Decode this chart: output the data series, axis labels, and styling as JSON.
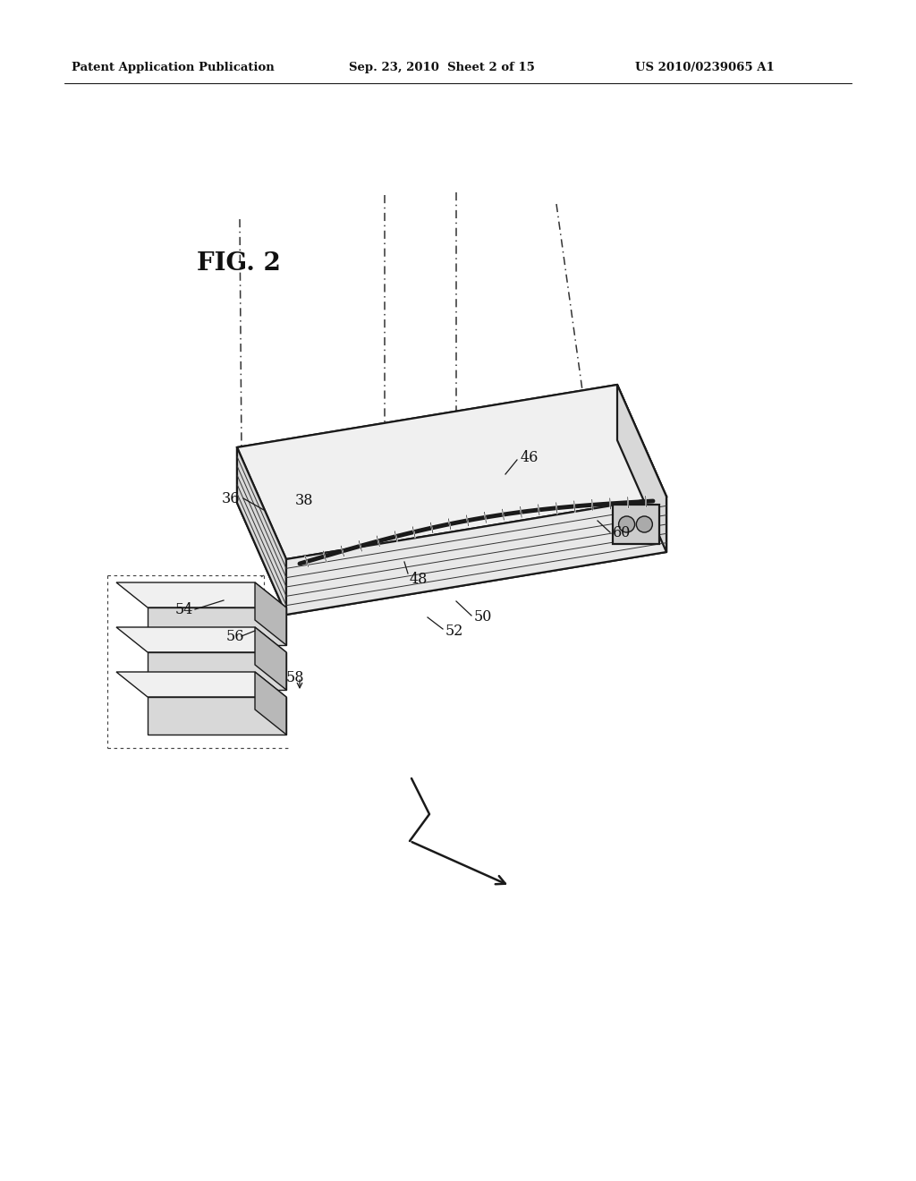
{
  "bg_color": "#ffffff",
  "header_left": "Patent Application Publication",
  "header_mid": "Sep. 23, 2010  Sheet 2 of 15",
  "header_right": "US 2010/0239065 A1",
  "fig_label": "FIG. 2",
  "line_color": "#1a1a1a",
  "gray_light": "#f0f0f0",
  "gray_mid": "#d8d8d8",
  "gray_dark": "#b8b8b8",
  "gray_side": "#e8e8e8"
}
